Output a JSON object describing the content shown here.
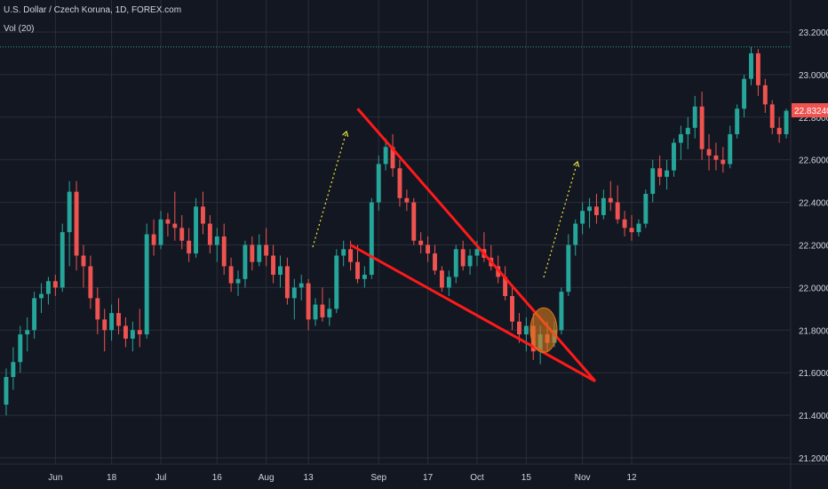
{
  "header": {
    "title": "U.S. Dollar / Czech Koruna, 1D, FOREX.com",
    "volume_label": "Vol (20)"
  },
  "colors": {
    "background": "#131722",
    "grid": "#2a2e39",
    "up": "#26a69a",
    "down": "#ef5350",
    "drawing": "#ff1a1a",
    "arrow": "#f5ea3b",
    "highlight": "#d97a1c",
    "ref_line": "#26a69a",
    "price_label_bg": "#ef5350"
  },
  "chart_data": {
    "type": "candlestick",
    "ylim": [
      21.2,
      23.3
    ],
    "y_ticks": [
      "23.20000",
      "23.00000",
      "22.80000",
      "22.60000",
      "22.40000",
      "22.20000",
      "22.00000",
      "21.80000",
      "21.60000",
      "21.40000",
      "21.20000"
    ],
    "x_ticks": [
      "Jun",
      "18",
      "Jul",
      "16",
      "Aug",
      "13",
      "Sep",
      "17",
      "Oct",
      "15",
      "Nov",
      "12"
    ],
    "last_price_label": "22.83240",
    "last_price": 22.8324,
    "ref_level": 23.13,
    "grid": true,
    "candles": [
      [
        21.45,
        21.62,
        21.4,
        21.58
      ],
      [
        21.58,
        21.72,
        21.52,
        21.65
      ],
      [
        21.65,
        21.82,
        21.6,
        21.78
      ],
      [
        21.78,
        21.86,
        21.7,
        21.8
      ],
      [
        21.8,
        21.98,
        21.76,
        21.95
      ],
      [
        21.95,
        22.02,
        21.88,
        21.97
      ],
      [
        21.97,
        22.05,
        21.92,
        22.03
      ],
      [
        22.03,
        22.06,
        21.96,
        22.0
      ],
      [
        22.0,
        22.3,
        21.98,
        22.26
      ],
      [
        22.26,
        22.5,
        22.1,
        22.45
      ],
      [
        22.45,
        22.5,
        22.08,
        22.15
      ],
      [
        22.15,
        22.2,
        22.0,
        22.1
      ],
      [
        22.1,
        22.15,
        21.9,
        21.95
      ],
      [
        21.95,
        22.0,
        21.78,
        21.85
      ],
      [
        21.85,
        21.9,
        21.7,
        21.8
      ],
      [
        21.8,
        21.92,
        21.75,
        21.88
      ],
      [
        21.88,
        21.95,
        21.78,
        21.82
      ],
      [
        21.82,
        21.86,
        21.72,
        21.76
      ],
      [
        21.76,
        21.84,
        21.7,
        21.8
      ],
      [
        21.8,
        21.9,
        21.72,
        21.78
      ],
      [
        21.78,
        22.3,
        21.76,
        22.25
      ],
      [
        22.25,
        22.32,
        22.15,
        22.2
      ],
      [
        22.2,
        22.36,
        22.18,
        22.32
      ],
      [
        22.32,
        22.35,
        22.24,
        22.3
      ],
      [
        22.3,
        22.45,
        22.22,
        22.28
      ],
      [
        22.28,
        22.34,
        22.18,
        22.22
      ],
      [
        22.22,
        22.28,
        22.12,
        22.16
      ],
      [
        22.16,
        22.42,
        22.14,
        22.38
      ],
      [
        22.38,
        22.45,
        22.25,
        22.3
      ],
      [
        22.3,
        22.34,
        22.16,
        22.2
      ],
      [
        22.2,
        22.28,
        22.12,
        22.24
      ],
      [
        22.24,
        22.3,
        22.06,
        22.1
      ],
      [
        22.1,
        22.14,
        21.98,
        22.02
      ],
      [
        22.02,
        22.08,
        21.96,
        22.04
      ],
      [
        22.04,
        22.22,
        22.0,
        22.2
      ],
      [
        22.2,
        22.24,
        22.08,
        22.12
      ],
      [
        22.12,
        22.25,
        22.1,
        22.2
      ],
      [
        22.2,
        22.28,
        22.1,
        22.15
      ],
      [
        22.15,
        22.2,
        22.02,
        22.06
      ],
      [
        22.06,
        22.15,
        22.0,
        22.1
      ],
      [
        22.1,
        22.14,
        21.92,
        21.95
      ],
      [
        21.95,
        22.04,
        21.85,
        22.0
      ],
      [
        22.0,
        22.06,
        21.94,
        22.02
      ],
      [
        22.02,
        22.04,
        21.8,
        21.85
      ],
      [
        21.85,
        21.95,
        21.82,
        21.92
      ],
      [
        21.92,
        22.0,
        21.84,
        21.86
      ],
      [
        21.86,
        21.95,
        21.82,
        21.9
      ],
      [
        21.9,
        22.18,
        21.88,
        22.15
      ],
      [
        22.15,
        22.22,
        22.1,
        22.18
      ],
      [
        22.18,
        22.22,
        22.08,
        22.12
      ],
      [
        22.12,
        22.2,
        22.02,
        22.04
      ],
      [
        22.04,
        22.1,
        22.0,
        22.06
      ],
      [
        22.06,
        22.42,
        22.04,
        22.4
      ],
      [
        22.4,
        22.62,
        22.36,
        22.58
      ],
      [
        22.58,
        22.7,
        22.55,
        22.66
      ],
      [
        22.66,
        22.72,
        22.52,
        22.56
      ],
      [
        22.56,
        22.6,
        22.38,
        22.42
      ],
      [
        22.42,
        22.46,
        22.36,
        22.4
      ],
      [
        22.4,
        22.42,
        22.2,
        22.22
      ],
      [
        22.22,
        22.26,
        22.16,
        22.2
      ],
      [
        22.2,
        22.24,
        22.12,
        22.16
      ],
      [
        22.16,
        22.2,
        22.06,
        22.08
      ],
      [
        22.08,
        22.1,
        21.98,
        22.0
      ],
      [
        22.0,
        22.08,
        21.96,
        22.05
      ],
      [
        22.05,
        22.2,
        22.02,
        22.18
      ],
      [
        22.18,
        22.22,
        22.08,
        22.1
      ],
      [
        22.1,
        22.18,
        22.06,
        22.15
      ],
      [
        22.15,
        22.22,
        22.1,
        22.18
      ],
      [
        22.18,
        22.26,
        22.12,
        22.14
      ],
      [
        22.14,
        22.2,
        22.08,
        22.1
      ],
      [
        22.1,
        22.15,
        22.02,
        22.05
      ],
      [
        22.05,
        22.1,
        21.94,
        21.96
      ],
      [
        21.96,
        22.0,
        21.8,
        21.84
      ],
      [
        21.84,
        21.88,
        21.74,
        21.78
      ],
      [
        21.78,
        21.86,
        21.7,
        21.82
      ],
      [
        21.82,
        21.88,
        21.66,
        21.7
      ],
      [
        21.7,
        21.82,
        21.64,
        21.78
      ],
      [
        21.78,
        21.84,
        21.7,
        21.74
      ],
      [
        21.74,
        21.84,
        21.72,
        21.8
      ],
      [
        21.8,
        22.0,
        21.78,
        21.98
      ],
      [
        21.98,
        22.25,
        21.96,
        22.2
      ],
      [
        22.2,
        22.32,
        22.15,
        22.3
      ],
      [
        22.3,
        22.4,
        22.25,
        22.36
      ],
      [
        22.36,
        22.42,
        22.28,
        22.38
      ],
      [
        22.38,
        22.44,
        22.3,
        22.34
      ],
      [
        22.34,
        22.46,
        22.32,
        22.42
      ],
      [
        22.42,
        22.5,
        22.36,
        22.4
      ],
      [
        22.4,
        22.48,
        22.3,
        22.32
      ],
      [
        22.32,
        22.36,
        22.24,
        22.28
      ],
      [
        22.28,
        22.34,
        22.22,
        22.26
      ],
      [
        22.26,
        22.32,
        22.24,
        22.3
      ],
      [
        22.3,
        22.46,
        22.28,
        22.44
      ],
      [
        22.44,
        22.6,
        22.4,
        22.56
      ],
      [
        22.56,
        22.62,
        22.48,
        22.52
      ],
      [
        22.52,
        22.6,
        22.46,
        22.55
      ],
      [
        22.55,
        22.7,
        22.52,
        22.68
      ],
      [
        22.68,
        22.76,
        22.6,
        22.72
      ],
      [
        22.72,
        22.8,
        22.65,
        22.75
      ],
      [
        22.75,
        22.9,
        22.7,
        22.85
      ],
      [
        22.85,
        22.92,
        22.6,
        22.65
      ],
      [
        22.65,
        22.72,
        22.55,
        22.62
      ],
      [
        22.62,
        22.68,
        22.55,
        22.6
      ],
      [
        22.6,
        22.66,
        22.54,
        22.58
      ],
      [
        22.58,
        22.76,
        22.56,
        22.72
      ],
      [
        22.72,
        22.86,
        22.7,
        22.84
      ],
      [
        22.84,
        23.0,
        22.8,
        22.98
      ],
      [
        22.98,
        23.13,
        22.95,
        23.1
      ],
      [
        23.1,
        23.12,
        22.9,
        22.95
      ],
      [
        22.95,
        22.98,
        22.82,
        22.86
      ],
      [
        22.86,
        22.88,
        22.72,
        22.75
      ],
      [
        22.75,
        22.8,
        22.68,
        22.72
      ],
      [
        22.72,
        22.84,
        22.7,
        22.83
      ]
    ],
    "drawings": {
      "wedge_upper": [
        [
          13,
          22.84
        ],
        [
          22,
          21.56
        ]
      ],
      "wedge_lower": [
        [
          13,
          22.2
        ],
        [
          22,
          21.56
        ]
      ]
    }
  }
}
